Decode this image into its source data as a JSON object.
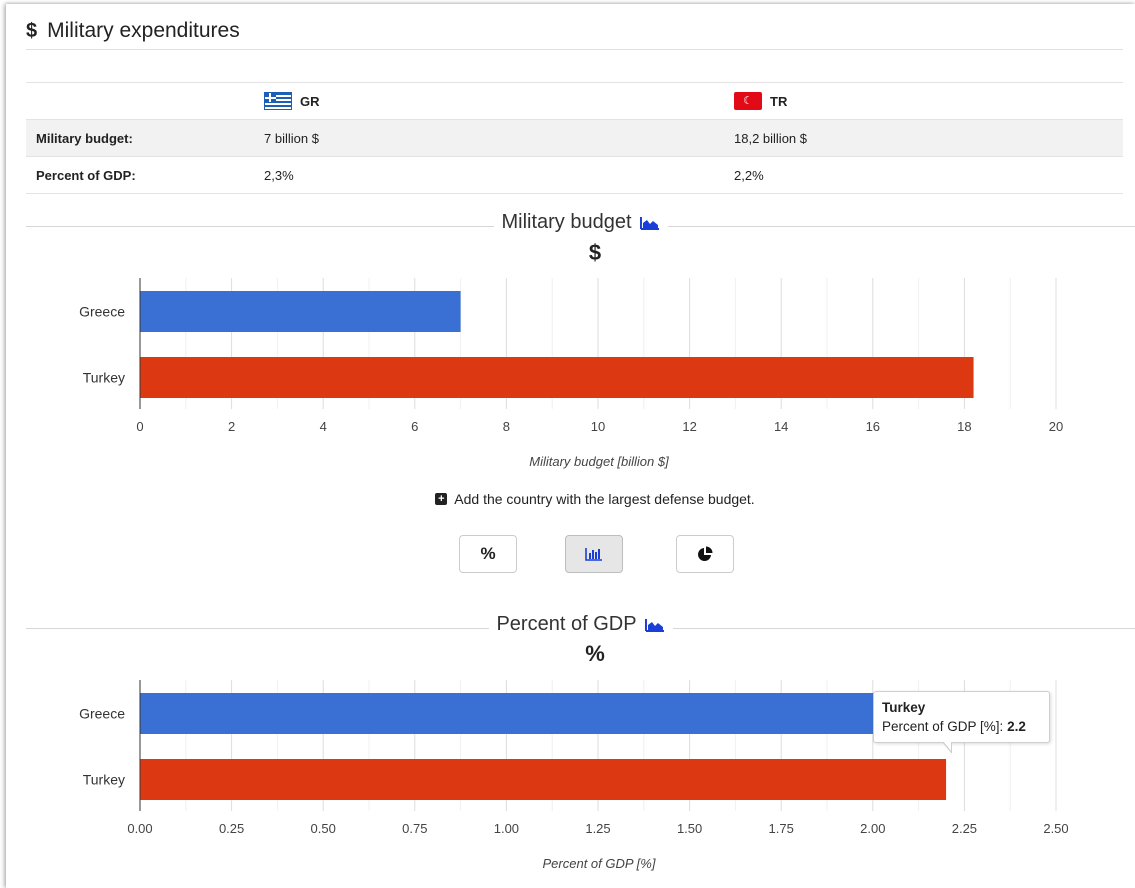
{
  "section": {
    "title": "Military expenditures"
  },
  "table": {
    "countries": [
      {
        "code": "GR"
      },
      {
        "code": "TR"
      }
    ],
    "rows": [
      {
        "label": "Military budget:",
        "values": [
          "7 billion $",
          "18,2 billion $"
        ]
      },
      {
        "label": "Percent of GDP:",
        "values": [
          "2,3%",
          "2,2%"
        ]
      }
    ]
  },
  "colors": {
    "greece": "#3a6fd3",
    "turkey": "#dc3912"
  },
  "charts_meta": [
    {
      "heading": "Military budget",
      "unit_symbol": "$",
      "icon": "area-chart-icon"
    },
    {
      "heading": "Percent of GDP",
      "unit_symbol": "%",
      "icon": "area-chart-icon"
    }
  ],
  "add_note": "Add the country with the largest defense budget.",
  "view_buttons": [
    {
      "icon": "percent-icon",
      "label": "%"
    },
    {
      "icon": "bar-chart-icon",
      "label": ""
    },
    {
      "icon": "pie-chart-icon",
      "label": ""
    }
  ],
  "tooltip": {
    "title": "Turkey",
    "label": "Percent of GDP [%]: ",
    "value": "2.2"
  },
  "chart_data": [
    {
      "type": "bar",
      "orientation": "horizontal",
      "categories": [
        "Greece",
        "Turkey"
      ],
      "values": [
        7,
        18.2
      ],
      "xlabel": "Military budget [billion $]",
      "xlim": [
        0,
        20
      ],
      "xticks": [
        "0",
        "2",
        "4",
        "6",
        "8",
        "10",
        "12",
        "14",
        "16",
        "18",
        "20"
      ],
      "grid": true
    },
    {
      "type": "bar",
      "orientation": "horizontal",
      "categories": [
        "Greece",
        "Turkey"
      ],
      "values": [
        2.3,
        2.2
      ],
      "xlabel": "Percent of GDP [%]",
      "xlim": [
        0,
        2.5
      ],
      "xticks": [
        "0.00",
        "0.25",
        "0.50",
        "0.75",
        "1.00",
        "1.25",
        "1.50",
        "1.75",
        "2.00",
        "2.25",
        "2.50"
      ],
      "grid": true
    }
  ]
}
